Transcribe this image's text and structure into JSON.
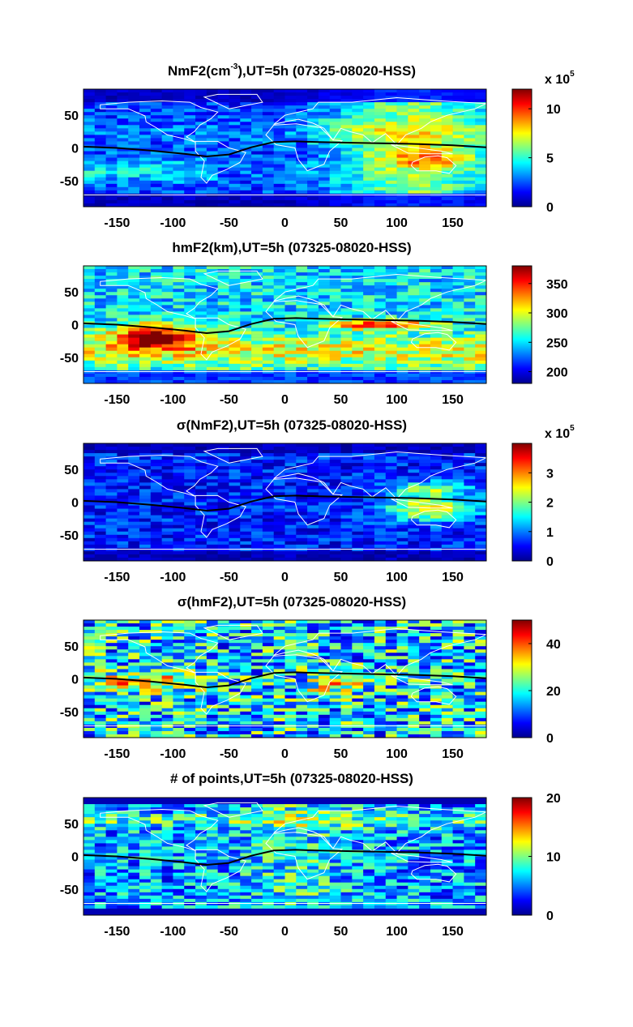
{
  "chart_data": [
    {
      "type": "heatmap",
      "title_main": "NmF2(cm",
      "title_sup": "-3",
      "title_rest": "),UT=5h (07325-08020-HSS)",
      "x_ticks": [
        -150,
        -100,
        -50,
        0,
        50,
        100,
        150
      ],
      "y_ticks": [
        50,
        0,
        -50
      ],
      "xlim": [
        -180,
        180
      ],
      "ylim": [
        -90,
        90
      ],
      "colorbar": {
        "range": [
          0,
          1200000
        ],
        "ticks": [
          0,
          5,
          10
        ],
        "tick_scale": 100000,
        "multiplier_base": "x 10",
        "multiplier_exp": "5"
      }
    },
    {
      "type": "heatmap",
      "title_main": "hmF2(km),UT=5h (07325-08020-HSS)",
      "x_ticks": [
        -150,
        -100,
        -50,
        0,
        50,
        100,
        150
      ],
      "y_ticks": [
        50,
        0,
        -50
      ],
      "xlim": [
        -180,
        180
      ],
      "ylim": [
        -90,
        90
      ],
      "colorbar": {
        "range": [
          180,
          380
        ],
        "ticks": [
          200,
          250,
          300,
          350
        ],
        "tick_scale": 1
      }
    },
    {
      "type": "heatmap",
      "title_main": "σ(NmF2),UT=5h (07325-08020-HSS)",
      "x_ticks": [
        -150,
        -100,
        -50,
        0,
        50,
        100,
        150
      ],
      "y_ticks": [
        50,
        0,
        -50
      ],
      "xlim": [
        -180,
        180
      ],
      "ylim": [
        -90,
        90
      ],
      "colorbar": {
        "range": [
          0,
          400000
        ],
        "ticks": [
          0,
          1,
          2,
          3
        ],
        "tick_scale": 100000,
        "multiplier_base": "x 10",
        "multiplier_exp": "5"
      }
    },
    {
      "type": "heatmap",
      "title_main": "σ(hmF2),UT=5h (07325-08020-HSS)",
      "x_ticks": [
        -150,
        -100,
        -50,
        0,
        50,
        100,
        150
      ],
      "y_ticks": [
        50,
        0,
        -50
      ],
      "xlim": [
        -180,
        180
      ],
      "ylim": [
        -90,
        90
      ],
      "colorbar": {
        "range": [
          0,
          50
        ],
        "ticks": [
          0,
          20,
          40
        ],
        "tick_scale": 1
      }
    },
    {
      "type": "heatmap",
      "title_main": "# of points,UT=5h (07325-08020-HSS)",
      "x_ticks": [
        -150,
        -100,
        -50,
        0,
        50,
        100,
        150
      ],
      "y_ticks": [
        50,
        0,
        -50
      ],
      "xlim": [
        -180,
        180
      ],
      "ylim": [
        -90,
        90
      ],
      "colorbar": {
        "range": [
          0,
          20
        ],
        "ticks": [
          0,
          10,
          20
        ],
        "tick_scale": 1
      }
    }
  ],
  "dip_equator": {
    "lon": [
      -180,
      -150,
      -120,
      -90,
      -70,
      -50,
      -30,
      -10,
      10,
      30,
      60,
      90,
      120,
      150,
      180
    ],
    "lat": [
      2,
      0,
      -4,
      -9,
      -13,
      -10,
      1,
      9,
      10,
      9,
      8,
      7,
      6,
      4,
      1
    ]
  }
}
